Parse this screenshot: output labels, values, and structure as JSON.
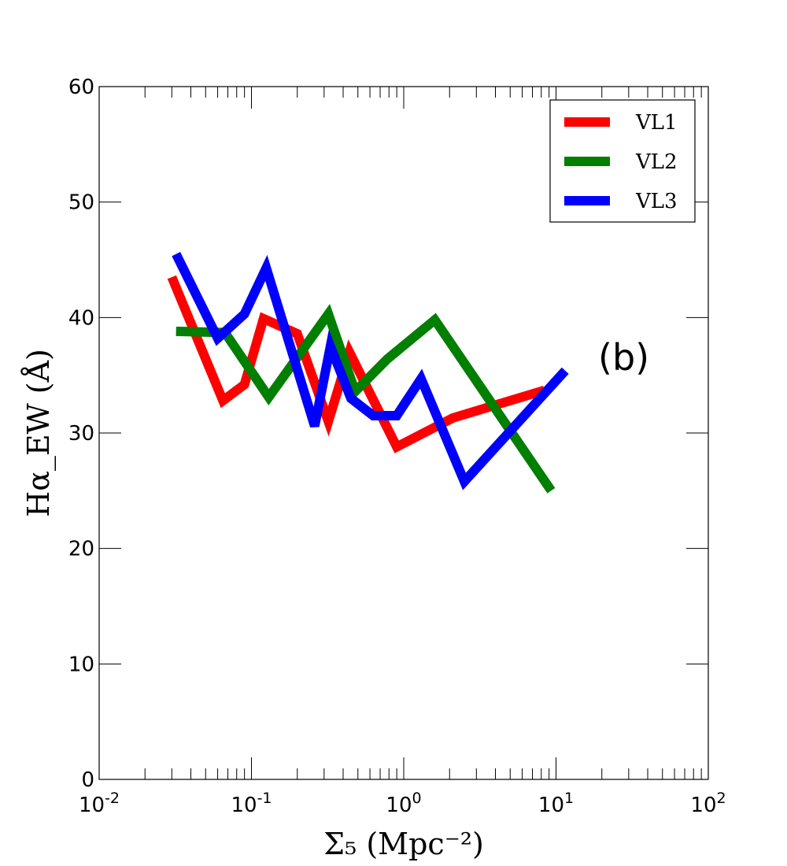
{
  "chart_data": {
    "type": "line",
    "title": "",
    "xlabel": "Σ₅ (Mpc⁻²)",
    "ylabel": "Hα_EW (Å)",
    "xscale": "log",
    "xlim": [
      0.01,
      100
    ],
    "ylim": [
      0,
      60
    ],
    "yticks": [
      0,
      10,
      20,
      30,
      40,
      50,
      60
    ],
    "xticks": [
      {
        "value": 0.01,
        "base": "10",
        "exp": "-2"
      },
      {
        "value": 0.1,
        "base": "10",
        "exp": "-1"
      },
      {
        "value": 1,
        "base": "10",
        "exp": "0"
      },
      {
        "value": 10,
        "base": "10",
        "exp": "1"
      },
      {
        "value": 100,
        "base": "10",
        "exp": "2"
      }
    ],
    "grid": false,
    "legend_position": "top-right",
    "annotation": "(b)",
    "series": [
      {
        "name": "VL1",
        "color": "#ff0000",
        "x": [
          0.03,
          0.065,
          0.09,
          0.12,
          0.2,
          0.32,
          0.44,
          0.9,
          2.1,
          8.4
        ],
        "y": [
          43.5,
          32.8,
          34.2,
          39.9,
          38.6,
          31.0,
          37.0,
          28.8,
          31.3,
          33.7
        ]
      },
      {
        "name": "VL2",
        "color": "#007f00",
        "x": [
          0.032,
          0.067,
          0.13,
          0.32,
          0.48,
          0.78,
          1.6,
          9.3
        ],
        "y": [
          38.8,
          38.7,
          33.1,
          40.3,
          33.6,
          36.4,
          39.8,
          25.0
        ]
      },
      {
        "name": "VL3",
        "color": "#0000ff",
        "x": [
          0.032,
          0.06,
          0.09,
          0.125,
          0.26,
          0.33,
          0.45,
          0.63,
          0.9,
          1.3,
          2.5,
          11.5
        ],
        "y": [
          45.5,
          38.2,
          40.3,
          44.3,
          30.6,
          37.5,
          33.0,
          31.5,
          31.5,
          34.7,
          25.8,
          35.4
        ]
      }
    ]
  }
}
